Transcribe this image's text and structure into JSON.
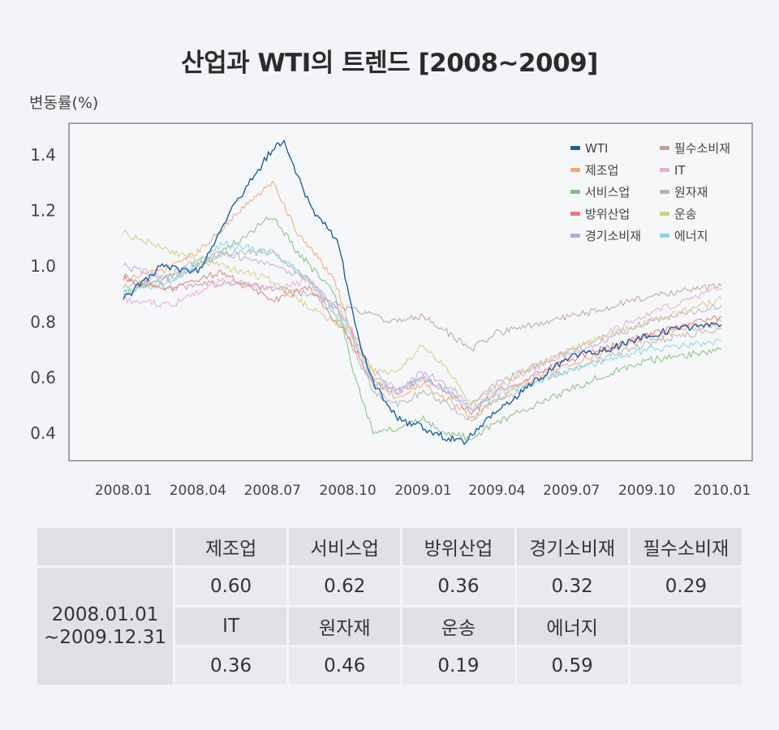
{
  "title": "산업과 WTI의 트렌드 [2008~2009]",
  "chart_data": {
    "type": "line",
    "title": "산업과 WTI의 트렌드 [2008~2009]",
    "ylabel": "변동률(%)",
    "ylim": [
      0.3,
      1.5
    ],
    "yticks": [
      "0.4",
      "0.6",
      "0.8",
      "1.0",
      "1.2",
      "1.4"
    ],
    "xticks": [
      "2008.01",
      "2008.04",
      "2008.07",
      "2008.10",
      "2009.01",
      "2009.04",
      "2009.07",
      "2009.10",
      "2010.01"
    ],
    "x_range": [
      "2008.01",
      "2010.01"
    ],
    "grid": false,
    "legend_position": "top-right",
    "series": [
      {
        "name": "WTI",
        "color": "#1f5fa3",
        "x": [
          "2008.01.01",
          "2008.02.15",
          "2008.04.01",
          "2008.05.15",
          "2008.07.01",
          "2008.07.15",
          "2008.08.15",
          "2008.09.20",
          "2008.10.10",
          "2008.11.01",
          "2008.12.01",
          "2009.01.01",
          "2009.02.01",
          "2009.02.20",
          "2009.04.01",
          "2009.05.15",
          "2009.07.01",
          "2009.08.15",
          "2009.10.01",
          "2009.11.15",
          "2009.12.31"
        ],
        "y": [
          0.88,
          1.0,
          0.98,
          1.22,
          1.42,
          1.45,
          1.22,
          1.08,
          0.78,
          0.58,
          0.45,
          0.42,
          0.38,
          0.37,
          0.48,
          0.58,
          0.68,
          0.7,
          0.75,
          0.78,
          0.79
        ]
      },
      {
        "name": "제조업",
        "color": "#f0a878",
        "x": [
          "2008.01.01",
          "2008.02.15",
          "2008.04.01",
          "2008.05.15",
          "2008.07.01",
          "2008.08.01",
          "2008.09.15",
          "2008.10.10",
          "2008.11.01",
          "2008.12.01",
          "2009.01.01",
          "2009.02.01",
          "2009.03.01",
          "2009.04.01",
          "2009.06.01",
          "2009.08.01",
          "2009.10.01",
          "2009.12.31"
        ],
        "y": [
          0.95,
          0.98,
          1.05,
          1.18,
          1.3,
          1.12,
          0.95,
          0.72,
          0.6,
          0.52,
          0.58,
          0.52,
          0.45,
          0.52,
          0.62,
          0.68,
          0.74,
          0.8
        ]
      },
      {
        "name": "서비스업",
        "color": "#7fc07a",
        "x": [
          "2008.01.01",
          "2008.02.15",
          "2008.04.01",
          "2008.05.15",
          "2008.07.01",
          "2008.08.01",
          "2008.09.15",
          "2008.10.10",
          "2008.11.01",
          "2008.12.01",
          "2009.01.01",
          "2009.02.01",
          "2009.03.01",
          "2009.04.01",
          "2009.06.01",
          "2009.08.01",
          "2009.10.01",
          "2009.12.31"
        ],
        "y": [
          0.9,
          0.95,
          1.0,
          1.08,
          1.18,
          1.05,
          0.9,
          0.6,
          0.4,
          0.42,
          0.45,
          0.4,
          0.38,
          0.44,
          0.52,
          0.6,
          0.66,
          0.7
        ]
      },
      {
        "name": "방위산업",
        "color": "#e07b7b",
        "x": [
          "2008.01.01",
          "2008.03.01",
          "2008.05.01",
          "2008.07.01",
          "2008.08.15",
          "2008.10.01",
          "2008.11.01",
          "2008.12.01",
          "2009.01.01",
          "2009.02.01",
          "2009.03.01",
          "2009.04.01",
          "2009.06.01",
          "2009.08.01",
          "2009.10.01",
          "2009.12.31"
        ],
        "y": [
          0.95,
          0.92,
          0.98,
          0.88,
          0.92,
          0.75,
          0.58,
          0.55,
          0.6,
          0.55,
          0.47,
          0.55,
          0.63,
          0.7,
          0.75,
          0.82
        ]
      },
      {
        "name": "경기소비재",
        "color": "#c3a6d6",
        "x": [
          "2008.01.01",
          "2008.03.01",
          "2008.05.01",
          "2008.07.01",
          "2008.08.15",
          "2008.10.01",
          "2008.11.01",
          "2008.12.01",
          "2009.01.01",
          "2009.02.01",
          "2009.03.01",
          "2009.04.01",
          "2009.06.01",
          "2009.08.01",
          "2009.10.01",
          "2009.12.31"
        ],
        "y": [
          1.0,
          0.95,
          1.05,
          1.0,
          0.95,
          0.8,
          0.6,
          0.55,
          0.62,
          0.57,
          0.5,
          0.58,
          0.66,
          0.72,
          0.8,
          0.86
        ]
      },
      {
        "name": "필수소비재",
        "color": "#bfa09a",
        "x": [
          "2008.01.01",
          "2008.03.01",
          "2008.05.01",
          "2008.07.01",
          "2008.08.15",
          "2008.10.01",
          "2008.11.01",
          "2008.12.01",
          "2009.01.01",
          "2009.02.01",
          "2009.03.01",
          "2009.04.01",
          "2009.06.01",
          "2009.08.01",
          "2009.10.01",
          "2009.12.31"
        ],
        "y": [
          0.96,
          0.92,
          0.94,
          0.92,
          0.9,
          0.85,
          0.82,
          0.8,
          0.82,
          0.76,
          0.7,
          0.76,
          0.8,
          0.84,
          0.89,
          0.93
        ]
      },
      {
        "name": "IT",
        "color": "#e9a8d6",
        "x": [
          "2008.01.01",
          "2008.03.01",
          "2008.05.01",
          "2008.07.01",
          "2008.08.15",
          "2008.10.01",
          "2008.11.01",
          "2008.12.01",
          "2009.01.01",
          "2009.02.01",
          "2009.03.01",
          "2009.04.01",
          "2009.06.01",
          "2009.08.01",
          "2009.10.01",
          "2009.12.31"
        ],
        "y": [
          0.88,
          0.86,
          0.95,
          0.92,
          0.95,
          0.8,
          0.62,
          0.55,
          0.6,
          0.55,
          0.48,
          0.56,
          0.66,
          0.74,
          0.83,
          0.92
        ]
      },
      {
        "name": "원자재",
        "color": "#b5b5b5",
        "x": [
          "2008.01.01",
          "2008.03.01",
          "2008.05.01",
          "2008.07.01",
          "2008.08.15",
          "2008.10.01",
          "2008.11.01",
          "2008.12.01",
          "2009.01.01",
          "2009.02.01",
          "2009.03.01",
          "2009.04.01",
          "2009.06.01",
          "2009.08.01",
          "2009.10.01",
          "2009.12.31"
        ],
        "y": [
          0.92,
          0.98,
          1.05,
          1.05,
          0.95,
          0.75,
          0.55,
          0.5,
          0.55,
          0.5,
          0.45,
          0.52,
          0.6,
          0.66,
          0.72,
          0.78
        ]
      },
      {
        "name": "운송",
        "color": "#cfd27a",
        "x": [
          "2008.01.01",
          "2008.03.01",
          "2008.05.01",
          "2008.07.01",
          "2008.08.15",
          "2008.10.01",
          "2008.11.01",
          "2008.12.01",
          "2009.01.01",
          "2009.02.01",
          "2009.03.01",
          "2009.04.01",
          "2009.06.01",
          "2009.08.01",
          "2009.10.01",
          "2009.12.31"
        ],
        "y": [
          1.12,
          1.05,
          1.0,
          0.95,
          0.85,
          0.78,
          0.62,
          0.62,
          0.72,
          0.62,
          0.5,
          0.58,
          0.66,
          0.74,
          0.8,
          0.88
        ]
      },
      {
        "name": "에너지",
        "color": "#88d4e6",
        "x": [
          "2008.01.01",
          "2008.03.01",
          "2008.05.01",
          "2008.07.01",
          "2008.08.15",
          "2008.10.01",
          "2008.11.01",
          "2008.12.01",
          "2009.01.01",
          "2009.02.01",
          "2009.03.01",
          "2009.04.01",
          "2009.06.01",
          "2009.08.01",
          "2009.10.01",
          "2009.12.31"
        ],
        "y": [
          0.9,
          0.95,
          1.08,
          1.05,
          0.95,
          0.78,
          0.58,
          0.55,
          0.6,
          0.55,
          0.48,
          0.54,
          0.6,
          0.65,
          0.7,
          0.73
        ]
      }
    ]
  },
  "table": {
    "row_label": "2008.01.01\n~2009.12.31",
    "header1": [
      "제조업",
      "서비스업",
      "방위산업",
      "경기소비재",
      "필수소비재"
    ],
    "values1": [
      "0.60",
      "0.62",
      "0.36",
      "0.32",
      "0.29"
    ],
    "header2": [
      "IT",
      "원자재",
      "운송",
      "에너지",
      ""
    ],
    "values2": [
      "0.36",
      "0.46",
      "0.19",
      "0.59",
      ""
    ]
  }
}
